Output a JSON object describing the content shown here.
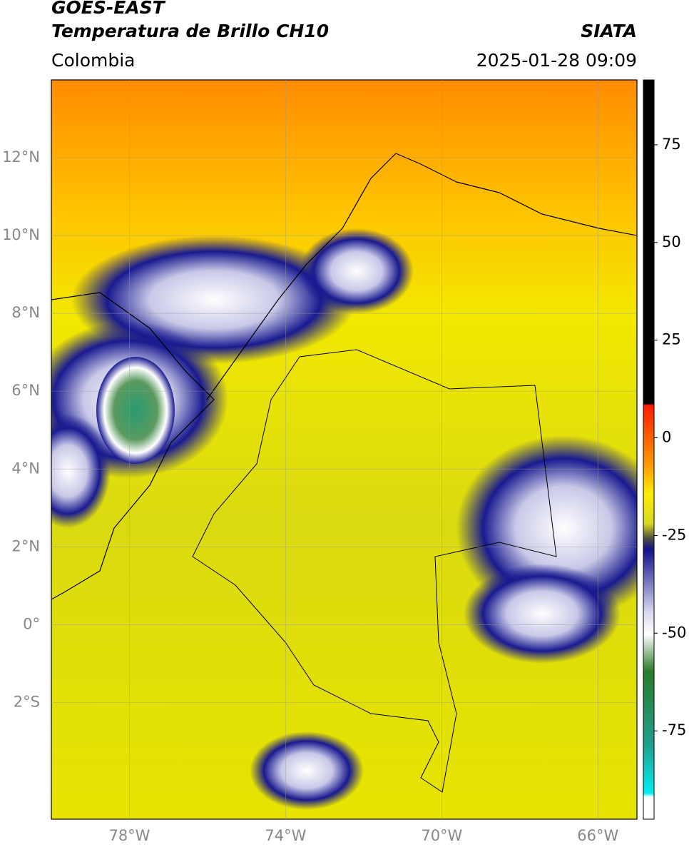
{
  "header": {
    "title": "GOES-EAST",
    "subtitle": "Temperatura de Brillo CH10",
    "source": "SIATA",
    "region": "Colombia",
    "datetime": "2025-01-28 09:09"
  },
  "map": {
    "lon_range": [
      -80,
      -65
    ],
    "lat_range": [
      -5,
      14
    ],
    "lat_ticks": [
      {
        "value": 12,
        "label": "12°N"
      },
      {
        "value": 10,
        "label": "10°N"
      },
      {
        "value": 8,
        "label": "8°N"
      },
      {
        "value": 6,
        "label": "6°N"
      },
      {
        "value": 4,
        "label": "4°N"
      },
      {
        "value": 2,
        "label": "2°N"
      },
      {
        "value": 0,
        "label": "0°"
      },
      {
        "value": -2,
        "label": "2°S"
      }
    ],
    "lon_ticks": [
      {
        "value": -78,
        "label": "78°W"
      },
      {
        "value": -74,
        "label": "74°W"
      },
      {
        "value": -70,
        "label": "70°W"
      },
      {
        "value": -66,
        "label": "66°W"
      }
    ]
  },
  "colorbar": {
    "range": [
      -97.6,
      91.6
    ],
    "ticks": [
      75,
      50,
      25,
      0,
      -25,
      -50,
      -75
    ]
  }
}
